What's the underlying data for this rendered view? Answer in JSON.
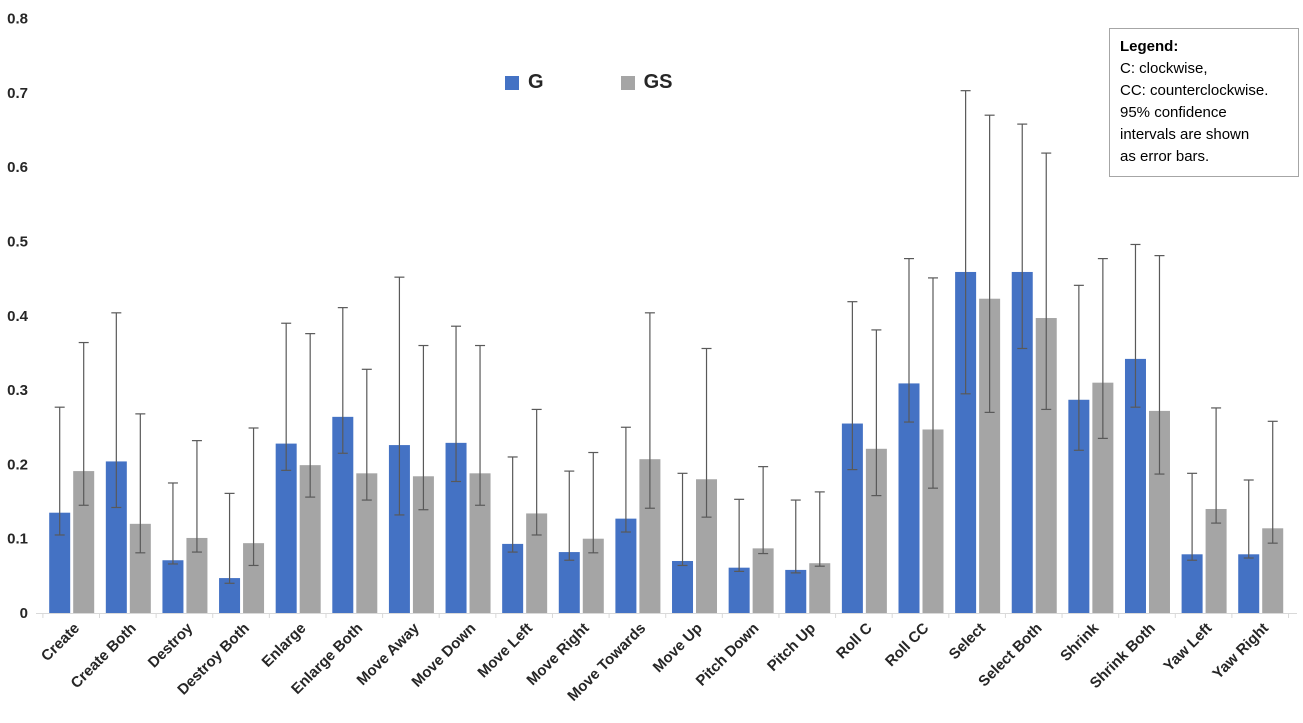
{
  "series_legend": {
    "g_label": "G",
    "gs_label": "GS"
  },
  "legend_box": {
    "title": "Legend:",
    "lines": [
      "C: clockwise,",
      "CC: counterclockwise.",
      "95% confidence",
      "intervals are shown",
      "as error bars."
    ]
  },
  "chart_data": {
    "type": "bar",
    "title": "",
    "xlabel": "",
    "ylabel": "",
    "ylim": [
      0,
      0.8
    ],
    "yticks": [
      0,
      0.1,
      0.2,
      0.3,
      0.4,
      0.5,
      0.6,
      0.7,
      0.8
    ],
    "ytick_labels": [
      "0",
      "0.1",
      "0.2",
      "0.3",
      "0.4",
      "0.5",
      "0.6",
      "0.7",
      "0.8"
    ],
    "grid": false,
    "legend_position": "top-center",
    "error_bars": "95% confidence intervals",
    "categories": [
      "Create",
      "Create Both",
      "Destroy",
      "Destroy Both",
      "Enlarge",
      "Enlarge Both",
      "Move Away",
      "Move Down",
      "Move Left",
      "Move Right",
      "Move Towards",
      "Move Up",
      "Pitch Down",
      "Pitch Up",
      "Roll C",
      "Roll CC",
      "Select",
      "Select Both",
      "Shrink",
      "Shrink Both",
      "Yaw Left",
      "Yaw Right"
    ],
    "series": [
      {
        "name": "G",
        "color": "#4472C4",
        "values": [
          0.135,
          0.204,
          0.071,
          0.047,
          0.228,
          0.264,
          0.226,
          0.229,
          0.093,
          0.082,
          0.127,
          0.07,
          0.061,
          0.058,
          0.255,
          0.309,
          0.459,
          0.459,
          0.287,
          0.342,
          0.079,
          0.079
        ],
        "ci_low": [
          0.105,
          0.142,
          0.066,
          0.04,
          0.192,
          0.215,
          0.132,
          0.177,
          0.082,
          0.071,
          0.109,
          0.064,
          0.056,
          0.054,
          0.193,
          0.257,
          0.295,
          0.356,
          0.219,
          0.277,
          0.071,
          0.074
        ],
        "ci_high": [
          0.277,
          0.404,
          0.175,
          0.161,
          0.39,
          0.411,
          0.452,
          0.386,
          0.21,
          0.191,
          0.25,
          0.188,
          0.153,
          0.152,
          0.419,
          0.477,
          0.703,
          0.658,
          0.441,
          0.496,
          0.188,
          0.179
        ]
      },
      {
        "name": "GS",
        "color": "#A5A5A5",
        "values": [
          0.191,
          0.12,
          0.101,
          0.094,
          0.199,
          0.188,
          0.184,
          0.188,
          0.134,
          0.1,
          0.207,
          0.18,
          0.087,
          0.067,
          0.221,
          0.247,
          0.423,
          0.397,
          0.31,
          0.272,
          0.14,
          0.114
        ],
        "ci_low": [
          0.145,
          0.081,
          0.082,
          0.064,
          0.156,
          0.152,
          0.139,
          0.145,
          0.105,
          0.081,
          0.141,
          0.129,
          0.08,
          0.063,
          0.158,
          0.168,
          0.27,
          0.274,
          0.235,
          0.187,
          0.121,
          0.094
        ],
        "ci_high": [
          0.364,
          0.268,
          0.232,
          0.249,
          0.376,
          0.328,
          0.36,
          0.36,
          0.274,
          0.216,
          0.404,
          0.356,
          0.197,
          0.163,
          0.381,
          0.451,
          0.67,
          0.619,
          0.477,
          0.481,
          0.276,
          0.258
        ]
      }
    ],
    "colors": {
      "axis_line": "#D9D9D9",
      "error_bar": "#595959",
      "tick_text": "#262626"
    }
  }
}
